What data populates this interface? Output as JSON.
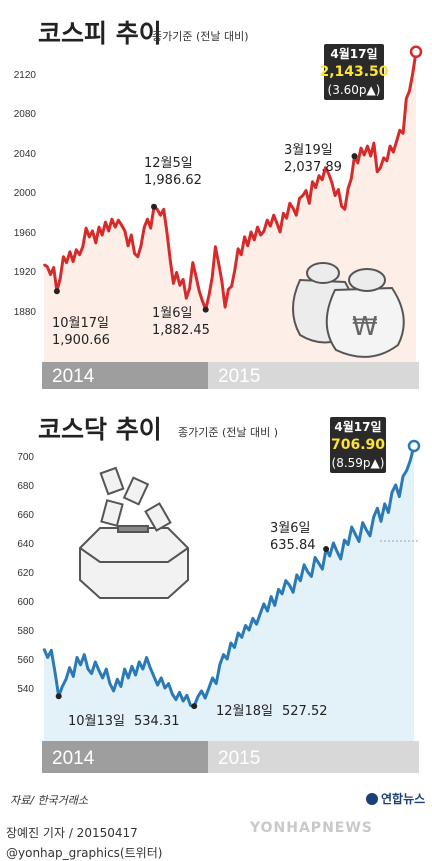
{
  "credits": {
    "source": "자료/ 한국거래소",
    "author": "장예진 기자 / 20150417",
    "sns": "@yonhap_graphics(트위터)",
    "agency_logo": "연합뉴스",
    "watermark": "YONHAPNEWS"
  },
  "chart_data": [
    {
      "type": "line",
      "title": "코스피 추이",
      "subtitle": "종가기준 (전날 대비)",
      "ylim": [
        1860,
        2150
      ],
      "yticks": [
        1880,
        1920,
        1960,
        2000,
        2040,
        2080,
        2120
      ],
      "grid": false,
      "color": "#d62b2b",
      "fill": "#fdeee8",
      "year_labels": [
        "2014",
        "2015"
      ],
      "series": [
        {
          "values": [
            1928,
            1926,
            1918,
            1925,
            1901,
            1914,
            1936,
            1930,
            1941,
            1931,
            1943,
            1938,
            1946,
            1965,
            1956,
            1962,
            1950,
            1966,
            1958,
            1971,
            1962,
            1974,
            1966,
            1973,
            1968,
            1962,
            1947,
            1958,
            1939,
            1936,
            1947,
            1966,
            1974,
            1965,
            1986.62,
            1984,
            1978,
            1984,
            1961,
            1933,
            1909,
            1920,
            1907,
            1913,
            1894,
            1904,
            1930,
            1916,
            1901,
            1891,
            1882.45,
            1897,
            1915,
            1946,
            1929,
            1911,
            1885,
            1903,
            1906,
            1923,
            1944,
            1938,
            1956,
            1947,
            1961,
            1953,
            1966,
            1958,
            1962,
            1973,
            1967,
            1978,
            1970,
            1961,
            1980,
            1975,
            1990,
            1985,
            1978,
            1995,
            1998,
            2003,
            1990,
            2012,
            2006,
            2018,
            2014,
            2026,
            2020,
            2011,
            1998,
            2004,
            1987,
            1984,
            2005,
            2015,
            2037.89,
            2031,
            2046,
            2039,
            2048,
            2038,
            2051,
            2022,
            2026,
            2036,
            2033,
            2048,
            2042,
            2053,
            2064,
            2061,
            2096,
            2104,
            2122,
            2143.5
          ]
        }
      ],
      "annotations": [
        {
          "date": "10월17일",
          "value": "1,900.66"
        },
        {
          "date": "12월5일",
          "value": "1,986.62"
        },
        {
          "date": "1월6일",
          "value": "1,882.45"
        },
        {
          "date": "3월19일",
          "value": "2,037.89"
        }
      ],
      "last": {
        "date": "4월17일",
        "value": "2,143.50",
        "change": "(3.60p▲)"
      }
    },
    {
      "type": "line",
      "title": "코스닥 추이",
      "subtitle": "종가기준 (전날 대비 )",
      "ylim": [
        520,
        710
      ],
      "yticks": [
        540,
        560,
        580,
        600,
        620,
        640,
        660,
        680,
        700
      ],
      "grid": false,
      "color": "#2b7ab6",
      "fill": "#e3f1f9",
      "year_labels": [
        "2014",
        "2015"
      ],
      "series": [
        {
          "values": [
            567,
            561,
            566,
            551,
            534.31,
            541,
            546,
            554,
            548,
            561,
            556,
            563,
            553,
            550,
            558,
            552,
            547,
            553,
            543,
            538,
            546,
            541,
            553,
            547,
            555,
            549,
            558,
            553,
            561,
            554,
            548,
            542,
            547,
            540,
            543,
            536,
            532,
            537,
            531,
            535,
            528,
            527.52,
            534,
            538,
            533,
            540,
            547,
            543,
            556,
            563,
            560,
            571,
            568,
            578,
            575,
            583,
            580,
            588,
            584,
            591,
            598,
            593,
            603,
            597,
            608,
            605,
            614,
            611,
            606,
            618,
            614,
            625,
            620,
            617,
            630,
            626,
            622,
            635.84,
            631,
            640,
            634,
            629,
            642,
            639,
            651,
            646,
            641,
            654,
            649,
            645,
            658,
            664,
            655,
            667,
            661,
            675,
            680,
            672,
            686,
            690,
            697,
            706.9
          ]
        }
      ],
      "annotations": [
        {
          "date": "10월13일",
          "value": "534.31"
        },
        {
          "date": "12월18일",
          "value": "527.52"
        },
        {
          "date": "3월6일",
          "value": "635.84"
        }
      ],
      "last": {
        "date": "4월17일",
        "value": "706.90",
        "change": "(8.59p▲)"
      }
    }
  ]
}
